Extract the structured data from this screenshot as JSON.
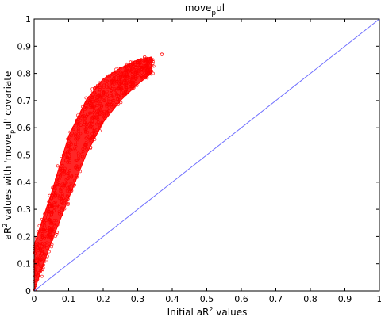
{
  "chart_data": {
    "type": "scatter",
    "title": {
      "base": "move",
      "sub": "p",
      "tail": "ul"
    },
    "xlabel": {
      "pre": "Initial aR",
      "sup": "2",
      "post": " values"
    },
    "ylabel": {
      "pre": "aR",
      "sup": "2",
      "mid1": " values with 'move",
      "sub": "p",
      "mid2": "ul' covariate"
    },
    "xlim": [
      0,
      1
    ],
    "ylim": [
      0,
      1
    ],
    "xticks": [
      "0",
      "0.1",
      "0.2",
      "0.3",
      "0.4",
      "0.5",
      "0.6",
      "0.7",
      "0.8",
      "0.9",
      "1"
    ],
    "yticks": [
      "0",
      "0.1",
      "0.2",
      "0.3",
      "0.4",
      "0.5",
      "0.6",
      "0.7",
      "0.8",
      "0.9",
      "1"
    ],
    "grid": false,
    "series": [
      {
        "kind": "scatter",
        "marker": "open-circle",
        "color": "#ff0000",
        "points": [
          [
            0.002,
            0.005
          ],
          [
            0.004,
            0.02
          ],
          [
            0.006,
            0.06
          ],
          [
            0.008,
            0.1
          ],
          [
            0.01,
            0.12
          ],
          [
            0.012,
            0.15
          ],
          [
            0.015,
            0.17
          ],
          [
            0.02,
            0.19
          ],
          [
            0.022,
            0.22
          ],
          [
            0.025,
            0.2
          ],
          [
            0.03,
            0.24
          ],
          [
            0.032,
            0.27
          ],
          [
            0.035,
            0.26
          ],
          [
            0.04,
            0.3
          ],
          [
            0.042,
            0.28
          ],
          [
            0.045,
            0.32
          ],
          [
            0.05,
            0.34
          ],
          [
            0.052,
            0.31
          ],
          [
            0.055,
            0.36
          ],
          [
            0.06,
            0.38
          ],
          [
            0.062,
            0.35
          ],
          [
            0.065,
            0.41
          ],
          [
            0.07,
            0.42
          ],
          [
            0.072,
            0.39
          ],
          [
            0.075,
            0.45
          ],
          [
            0.08,
            0.47
          ],
          [
            0.082,
            0.44
          ],
          [
            0.085,
            0.5
          ],
          [
            0.09,
            0.51
          ],
          [
            0.092,
            0.48
          ],
          [
            0.095,
            0.53
          ],
          [
            0.1,
            0.55
          ],
          [
            0.105,
            0.52
          ],
          [
            0.11,
            0.58
          ],
          [
            0.115,
            0.6
          ],
          [
            0.12,
            0.57
          ],
          [
            0.125,
            0.62
          ],
          [
            0.13,
            0.64
          ],
          [
            0.135,
            0.61
          ],
          [
            0.14,
            0.66
          ],
          [
            0.15,
            0.68
          ],
          [
            0.155,
            0.65
          ],
          [
            0.16,
            0.7
          ],
          [
            0.17,
            0.72
          ],
          [
            0.18,
            0.7
          ],
          [
            0.19,
            0.74
          ],
          [
            0.2,
            0.73
          ],
          [
            0.21,
            0.76
          ],
          [
            0.22,
            0.75
          ],
          [
            0.23,
            0.78
          ],
          [
            0.24,
            0.77
          ],
          [
            0.25,
            0.79
          ],
          [
            0.26,
            0.8
          ],
          [
            0.27,
            0.82
          ],
          [
            0.28,
            0.83
          ],
          [
            0.3,
            0.84
          ],
          [
            0.32,
            0.86
          ],
          [
            0.34,
            0.85
          ],
          [
            0.37,
            0.87
          ]
        ],
        "band": [
          [
            0.0,
            0.0,
            0.17
          ],
          [
            0.05,
            0.18,
            0.36
          ],
          [
            0.1,
            0.34,
            0.57
          ],
          [
            0.15,
            0.5,
            0.7
          ],
          [
            0.2,
            0.62,
            0.78
          ],
          [
            0.25,
            0.7,
            0.82
          ],
          [
            0.3,
            0.76,
            0.85
          ],
          [
            0.34,
            0.8,
            0.86
          ]
        ]
      },
      {
        "kind": "line",
        "name": "",
        "color": "#6f6fff",
        "x": [
          0,
          1
        ],
        "y": [
          0,
          1
        ]
      }
    ]
  }
}
